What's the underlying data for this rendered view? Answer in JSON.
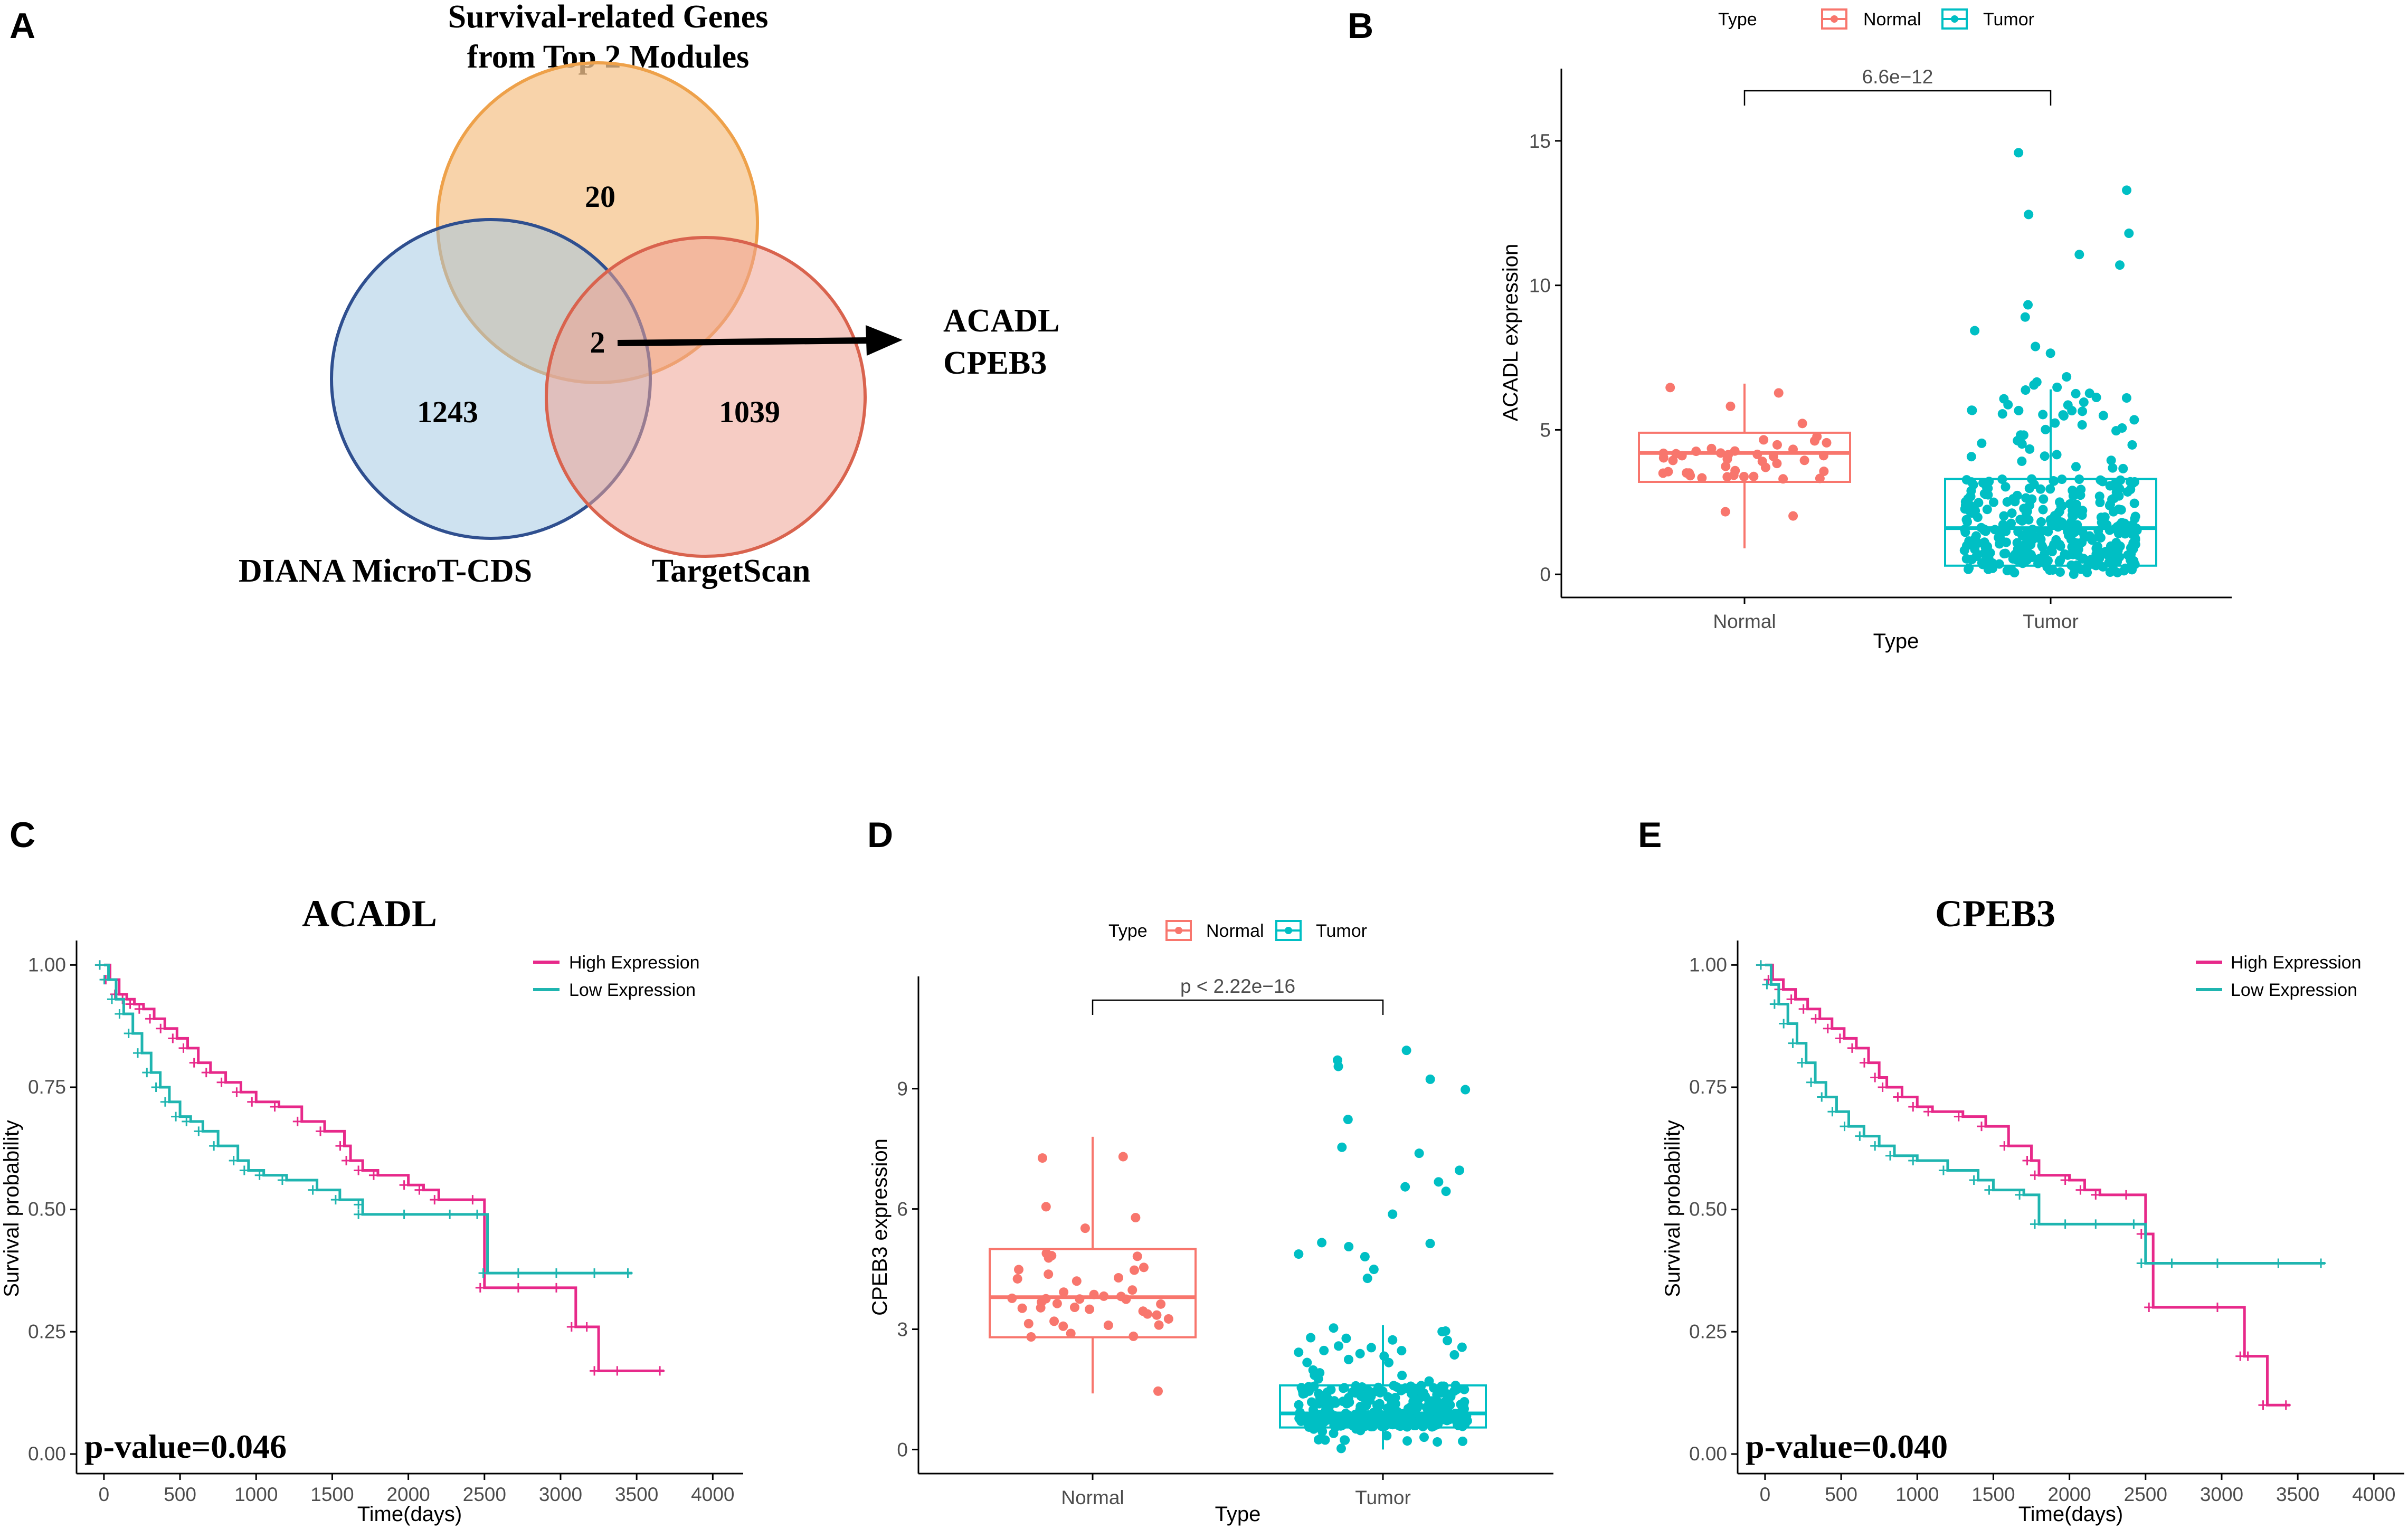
{
  "panels": {
    "A": "A",
    "B": "B",
    "C": "C",
    "D": "D",
    "E": "E"
  },
  "venn": {
    "title_line1": "Survival-related Genes",
    "title_line2": "from Top 2 Modules",
    "sets": [
      {
        "name": "DIANA MicroT-CDS",
        "unique": "1243",
        "color": "#6fa8dc"
      },
      {
        "name": "Survival-related Genes from Top 2 Modules",
        "unique": "20",
        "color": "#f0a14a"
      },
      {
        "name": "TargetScan",
        "unique": "1039",
        "color": "#e8766a"
      }
    ],
    "intersection": "2",
    "label_left": "DIANA MicroT-CDS",
    "label_right": "TargetScan",
    "genes_line1": "ACADL",
    "genes_line2": "CPEB3"
  },
  "colors": {
    "normal": "#F8766D",
    "tumor": "#00BFC4",
    "high": "#E7298A",
    "low": "#1FB5B0"
  },
  "chart_data": [
    {
      "id": "B",
      "type": "boxplot",
      "legend_title": "Type",
      "legend_items": [
        "Normal",
        "Tumor"
      ],
      "xlabel": "Type",
      "ylabel": "ACADL expression",
      "categories": [
        "Normal",
        "Tumor"
      ],
      "ylim": [
        -0.8,
        17.5
      ],
      "yticks": [
        0,
        5,
        10,
        15
      ],
      "pvalue_label": "6.6e−12",
      "boxes": [
        {
          "q1": 3.2,
          "median": 4.2,
          "q3": 4.9,
          "whisker_low": 0.9,
          "whisker_high": 6.6
        },
        {
          "q1": 0.3,
          "median": 1.6,
          "q3": 3.3,
          "whisker_low": 0.0,
          "whisker_high": 6.4
        }
      ]
    },
    {
      "id": "C",
      "type": "line",
      "title": "ACADL",
      "xlabel": "Time(days)",
      "ylabel": "Survival probability",
      "xlim": [
        -180,
        4200
      ],
      "ylim": [
        -0.04,
        1.05
      ],
      "xticks": [
        0,
        500,
        1000,
        1500,
        2000,
        2500,
        3000,
        3500,
        4000
      ],
      "yticks": [
        "0.00",
        "0.25",
        "0.50",
        "0.75",
        "1.00"
      ],
      "pvalue": "p-value=0.046",
      "series": [
        {
          "name": "High Expression",
          "x": [
            0,
            40,
            100,
            150,
            200,
            260,
            330,
            400,
            480,
            550,
            620,
            700,
            800,
            900,
            1000,
            1150,
            1300,
            1450,
            1580,
            1620,
            1700,
            1800,
            2000,
            2100,
            2200,
            2450,
            2500,
            2750,
            3000,
            3100,
            3200,
            3250,
            3400,
            3680
          ],
          "y": [
            1.0,
            0.97,
            0.94,
            0.93,
            0.92,
            0.91,
            0.89,
            0.87,
            0.85,
            0.83,
            0.8,
            0.78,
            0.76,
            0.74,
            0.72,
            0.71,
            0.68,
            0.66,
            0.63,
            0.6,
            0.58,
            0.57,
            0.55,
            0.54,
            0.52,
            0.52,
            0.34,
            0.34,
            0.34,
            0.26,
            0.26,
            0.17,
            0.17,
            0.17
          ]
        },
        {
          "name": "Low Expression",
          "x": [
            0,
            30,
            80,
            130,
            190,
            250,
            310,
            370,
            430,
            500,
            570,
            650,
            750,
            880,
            950,
            1050,
            1200,
            1400,
            1550,
            1700,
            1700,
            2000,
            2300,
            2480,
            2520,
            2750,
            3000,
            3250,
            3470
          ],
          "y": [
            1.0,
            0.97,
            0.93,
            0.9,
            0.86,
            0.82,
            0.78,
            0.75,
            0.72,
            0.69,
            0.68,
            0.66,
            0.63,
            0.6,
            0.58,
            0.57,
            0.56,
            0.54,
            0.52,
            0.51,
            0.49,
            0.49,
            0.49,
            0.49,
            0.37,
            0.37,
            0.37,
            0.37,
            0.37
          ]
        }
      ]
    },
    {
      "id": "D",
      "type": "boxplot",
      "legend_title": "Type",
      "legend_items": [
        "Normal",
        "Tumor"
      ],
      "xlabel": "Type",
      "ylabel": "CPEB3 expression",
      "categories": [
        "Normal",
        "Tumor"
      ],
      "ylim": [
        -0.6,
        11.8
      ],
      "yticks": [
        0,
        3,
        6,
        9
      ],
      "pvalue_label": "p < 2.22e−16",
      "boxes": [
        {
          "q1": 2.8,
          "median": 3.8,
          "q3": 5.0,
          "whisker_low": 1.4,
          "whisker_high": 7.8
        },
        {
          "q1": 0.55,
          "median": 0.9,
          "q3": 1.6,
          "whisker_low": 0.0,
          "whisker_high": 3.1
        }
      ]
    },
    {
      "id": "E",
      "type": "line",
      "title": "CPEB3",
      "xlabel": "Time(days)",
      "ylabel": "Survival probability",
      "xlim": [
        -180,
        4200
      ],
      "ylim": [
        -0.04,
        1.05
      ],
      "xticks": [
        0,
        500,
        1000,
        1500,
        2000,
        2500,
        3000,
        3500,
        4000
      ],
      "yticks": [
        "0.00",
        "0.25",
        "0.50",
        "0.75",
        "1.00"
      ],
      "pvalue": "p-value=0.040",
      "series": [
        {
          "name": "High Expression",
          "x": [
            0,
            50,
            120,
            200,
            280,
            360,
            440,
            520,
            600,
            680,
            750,
            800,
            900,
            1000,
            1100,
            1300,
            1450,
            1600,
            1750,
            1800,
            2000,
            2100,
            2200,
            2400,
            2500,
            2550,
            3000,
            3150,
            3200,
            3300,
            3450
          ],
          "y": [
            1.0,
            0.97,
            0.95,
            0.93,
            0.91,
            0.89,
            0.87,
            0.85,
            0.83,
            0.8,
            0.77,
            0.75,
            0.73,
            0.71,
            0.7,
            0.69,
            0.67,
            0.63,
            0.6,
            0.57,
            0.56,
            0.54,
            0.53,
            0.53,
            0.45,
            0.3,
            0.3,
            0.2,
            0.2,
            0.1,
            0.1
          ]
        },
        {
          "name": "Low Expression",
          "x": [
            0,
            40,
            90,
            150,
            210,
            270,
            330,
            400,
            470,
            550,
            650,
            750,
            850,
            1000,
            1200,
            1400,
            1500,
            1700,
            1800,
            2000,
            2200,
            2450,
            2500,
            2700,
            3000,
            3400,
            3680
          ],
          "y": [
            1.0,
            0.96,
            0.92,
            0.88,
            0.84,
            0.8,
            0.76,
            0.73,
            0.7,
            0.67,
            0.65,
            0.63,
            0.61,
            0.6,
            0.58,
            0.56,
            0.54,
            0.53,
            0.47,
            0.47,
            0.47,
            0.47,
            0.39,
            0.39,
            0.39,
            0.39,
            0.39
          ]
        }
      ]
    }
  ]
}
